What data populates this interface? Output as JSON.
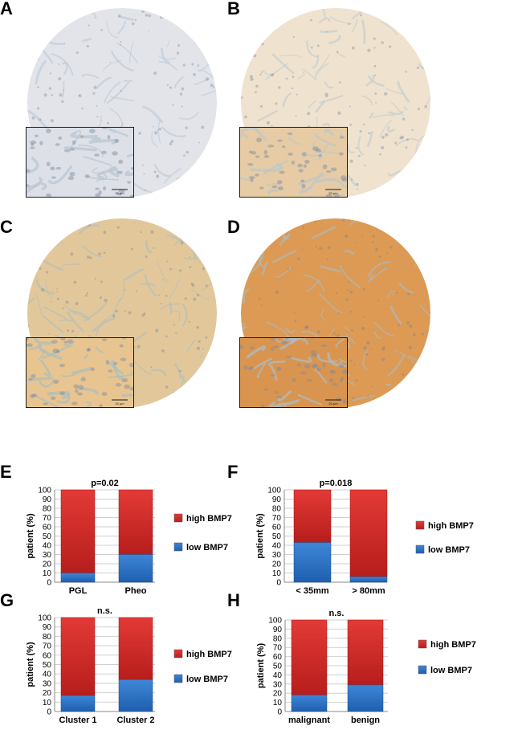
{
  "figure_panels": {
    "A": "A",
    "B": "B",
    "C": "C",
    "D": "D",
    "E": "E",
    "F": "F",
    "G": "G",
    "H": "H"
  },
  "micrographs": [
    {
      "panel": "A",
      "stain_level": "negative",
      "scale_bar_label": "20 µm",
      "tissue_color": "#e2e4ea",
      "inset_color": "#dde1e7",
      "accent_color": "#b8c4d2"
    },
    {
      "panel": "B",
      "stain_level": "weak",
      "scale_bar_label": "20 µm",
      "tissue_color": "#efe2cf",
      "inset_color": "#e6cba5",
      "accent_color": "#b9c8cc"
    },
    {
      "panel": "C",
      "stain_level": "moderate",
      "scale_bar_label": "20 µm",
      "tissue_color": "#e2c79b",
      "inset_color": "#e8c590",
      "accent_color": "#a9bdbf"
    },
    {
      "panel": "D",
      "stain_level": "strong",
      "scale_bar_label": "20 µm",
      "tissue_color": "#dc9a55",
      "inset_color": "#d9954f",
      "accent_color": "#a8bfcc"
    }
  ],
  "colors": {
    "high": "#e33a36",
    "high_dark": "#b61e1c",
    "low": "#3f86d8",
    "low_dark": "#1f5fae",
    "grid": "#cfcfcf",
    "axis": "#8a8a8a"
  },
  "chart_data": [
    {
      "panel": "E",
      "type": "bar",
      "stacked": true,
      "title": "p=0.02",
      "ylabel": "patient (%)",
      "ylim": [
        0,
        100
      ],
      "yticks": [
        "0",
        "10",
        "20",
        "30",
        "40",
        "50",
        "60",
        "70",
        "80",
        "90",
        "100"
      ],
      "categories": [
        "PGL",
        "Pheo"
      ],
      "series": [
        {
          "name": "low BMP7",
          "values": [
            10,
            30
          ]
        },
        {
          "name": "high BMP7",
          "values": [
            90,
            70
          ]
        }
      ],
      "legend_position": "right"
    },
    {
      "panel": "F",
      "type": "bar",
      "stacked": true,
      "title": "p=0.018",
      "ylabel": "patient (%)",
      "ylim": [
        0,
        100
      ],
      "yticks": [
        "0",
        "10",
        "20",
        "30",
        "40",
        "50",
        "60",
        "70",
        "80",
        "90",
        "100"
      ],
      "categories": [
        "< 35mm",
        "> 80mm"
      ],
      "series": [
        {
          "name": "low BMP7",
          "values": [
            43,
            6
          ]
        },
        {
          "name": "high BMP7",
          "values": [
            57,
            94
          ]
        }
      ],
      "legend_position": "right"
    },
    {
      "panel": "G",
      "type": "bar",
      "stacked": true,
      "title": "n.s.",
      "ylabel": "patient (%)",
      "ylim": [
        0,
        100
      ],
      "yticks": [
        "0",
        "10",
        "20",
        "30",
        "40",
        "50",
        "60",
        "70",
        "80",
        "90",
        "100"
      ],
      "categories": [
        "Cluster 1",
        "Cluster 2"
      ],
      "series": [
        {
          "name": "low BMP7",
          "values": [
            17,
            34
          ]
        },
        {
          "name": "high BMP7",
          "values": [
            83,
            66
          ]
        }
      ],
      "legend_position": "right"
    },
    {
      "panel": "H",
      "type": "bar",
      "stacked": true,
      "title": "n.s.",
      "ylabel": "patient (%)",
      "ylim": [
        0,
        100
      ],
      "yticks": [
        "0",
        "10",
        "20",
        "30",
        "40",
        "50",
        "60",
        "70",
        "80",
        "90",
        "100"
      ],
      "categories": [
        "malignant",
        "benign"
      ],
      "series": [
        {
          "name": "low BMP7",
          "values": [
            18,
            29
          ]
        },
        {
          "name": "high BMP7",
          "values": [
            82,
            71
          ]
        }
      ],
      "legend_position": "right"
    }
  ]
}
